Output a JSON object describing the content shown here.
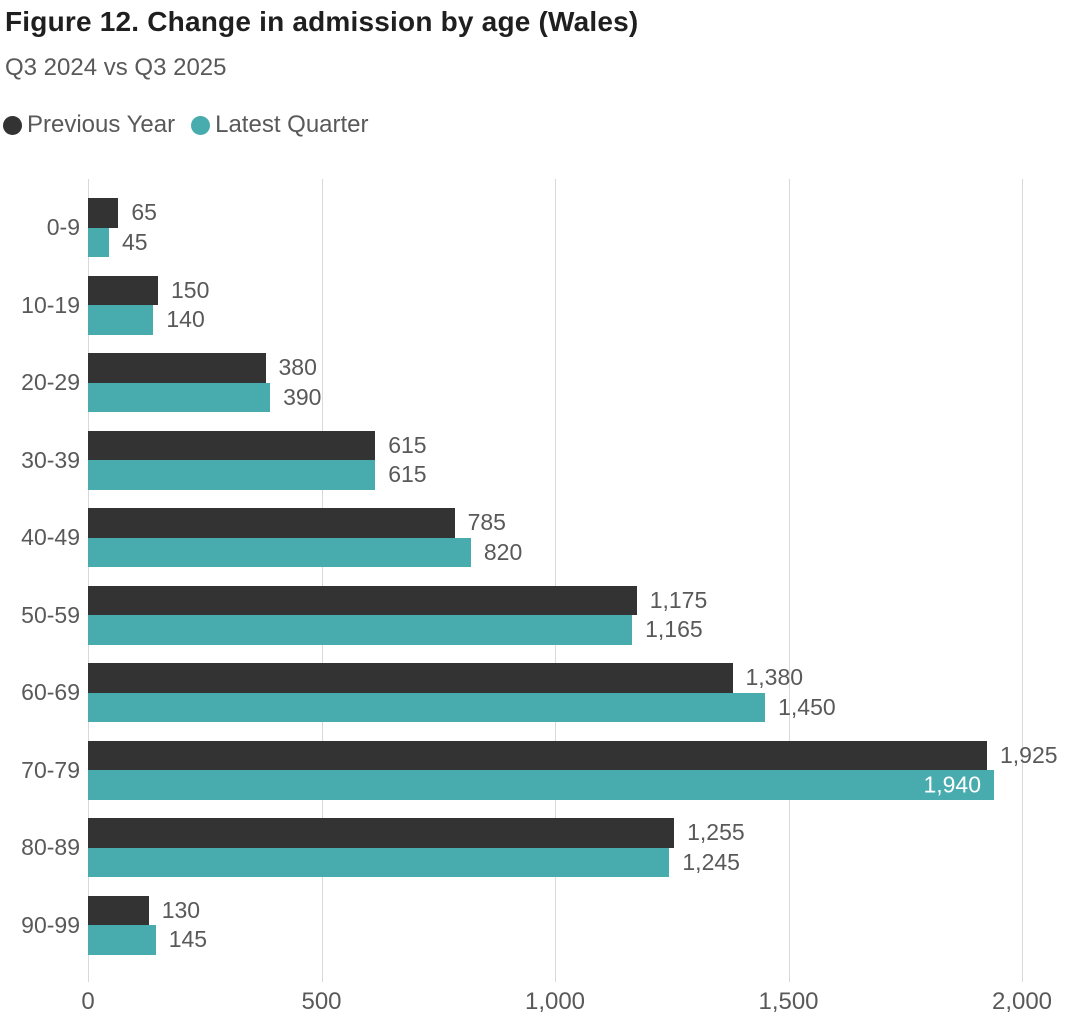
{
  "title": "Figure 12. Change in admission by age (Wales)",
  "subtitle": "Q3 2024 vs Q3 2025",
  "colors": {
    "previous_year": "#333333",
    "latest_quarter": "#48acaf",
    "gridline": "#d9d9d9",
    "text_secondary": "#595959",
    "title_text": "#1f1f1f",
    "inside_label_text": "#ffffff"
  },
  "legend": {
    "items": [
      {
        "label": "Previous Year",
        "color": "#333333"
      },
      {
        "label": "Latest Quarter",
        "color": "#48acaf"
      }
    ]
  },
  "chart_data": {
    "type": "bar",
    "orientation": "horizontal",
    "title": "Figure 12. Change in admission by age (Wales)",
    "subtitle": "Q3 2024 vs Q3 2025",
    "categories": [
      "0-9",
      "10-19",
      "20-29",
      "30-39",
      "40-49",
      "50-59",
      "60-69",
      "70-79",
      "80-89",
      "90-99"
    ],
    "series": [
      {
        "name": "Previous Year",
        "color": "#333333",
        "values": [
          65,
          150,
          380,
          615,
          785,
          1175,
          1380,
          1925,
          1255,
          130
        ],
        "labels": [
          "65",
          "150",
          "380",
          "615",
          "785",
          "1,175",
          "1,380",
          "1,925",
          "1,255",
          "130"
        ]
      },
      {
        "name": "Latest Quarter",
        "color": "#48acaf",
        "values": [
          45,
          140,
          390,
          615,
          820,
          1165,
          1450,
          1940,
          1245,
          145
        ],
        "labels": [
          "45",
          "140",
          "390",
          "615",
          "820",
          "1,165",
          "1,450",
          "1,940",
          "1,245",
          "145"
        ]
      }
    ],
    "xlim": [
      0,
      2000
    ],
    "xticks": [
      0,
      500,
      1000,
      1500,
      2000
    ],
    "xtick_labels": [
      "0",
      "500",
      "1,000",
      "1,500",
      "2,000"
    ],
    "grid": "vertical",
    "legend_position": "top-left",
    "value_labels": "outside-end",
    "inside_value_labels": [
      [
        1,
        7
      ]
    ]
  }
}
